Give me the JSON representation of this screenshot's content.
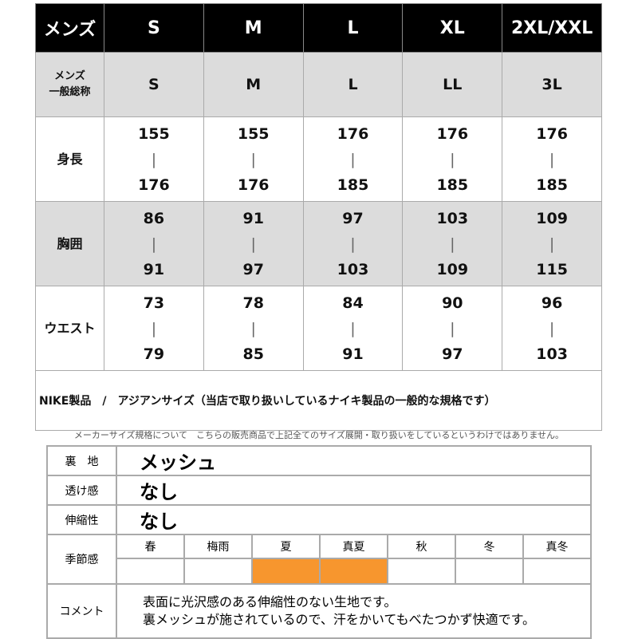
{
  "size_table": {
    "header_label": "メンズ",
    "sizes": [
      "S",
      "M",
      "L",
      "XL",
      "2XL/XXL"
    ],
    "general_label": "メンズ\n一般総称",
    "general": [
      "S",
      "M",
      "L",
      "LL",
      "3L"
    ],
    "rows": [
      {
        "label": "身長",
        "min": [
          "155",
          "155",
          "176",
          "176",
          "176"
        ],
        "max": [
          "176",
          "176",
          "185",
          "185",
          "185"
        ]
      },
      {
        "label": "胸囲",
        "min": [
          "86",
          "91",
          "97",
          "103",
          "109"
        ],
        "max": [
          "91",
          "97",
          "103",
          "109",
          "115"
        ]
      },
      {
        "label": "ウエスト",
        "min": [
          "73",
          "78",
          "84",
          "90",
          "96"
        ],
        "max": [
          "79",
          "85",
          "91",
          "97",
          "103"
        ]
      }
    ],
    "separator": "|",
    "note": "NIKE製品　/　アジアンサイズ（当店で取り扱いしているナイキ製品の一般的な規格です）"
  },
  "caption": "メーカーサイズ規格について　こちらの販売商品で上記全てのサイズ展開・取り扱いをしているというわけではありません。",
  "fabric": {
    "lining_label": "裏　地",
    "lining": "メッシュ",
    "sheer_label": "透け感",
    "sheer": "なし",
    "stretch_label": "伸縮性",
    "stretch": "なし",
    "season_label": "季節感",
    "seasons": [
      {
        "name": "春",
        "on": false
      },
      {
        "name": "梅雨",
        "on": false
      },
      {
        "name": "夏",
        "on": true
      },
      {
        "name": "真夏",
        "on": true
      },
      {
        "name": "秋",
        "on": false
      },
      {
        "name": "冬",
        "on": false
      },
      {
        "name": "真冬",
        "on": false
      }
    ],
    "highlight_color": "#f7962e",
    "comment_label": "コメント",
    "comment": [
      "表面に光沢感のある伸縮性のない生地です。",
      "裏メッシュが施されているので、汗をかいてもべたつかず快適です。"
    ]
  }
}
